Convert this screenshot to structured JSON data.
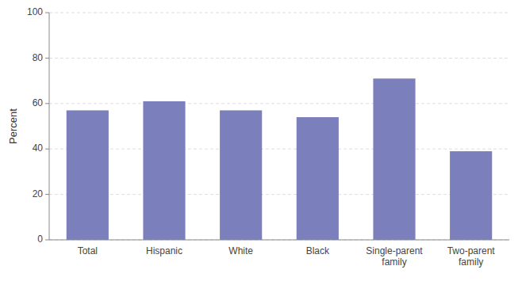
{
  "chart_data": {
    "type": "bar",
    "ylabel": "Percent",
    "categories": [
      "Total",
      "Hispanic",
      "White",
      "Black",
      "Single-parent\nfamily",
      "Two-parent\nfamily"
    ],
    "values": [
      57,
      61,
      57,
      54,
      71,
      39
    ],
    "color": "#7b80bc",
    "ylim": [
      0,
      100
    ],
    "yticks": [
      0,
      20,
      40,
      60,
      80,
      100
    ],
    "grid": true
  }
}
